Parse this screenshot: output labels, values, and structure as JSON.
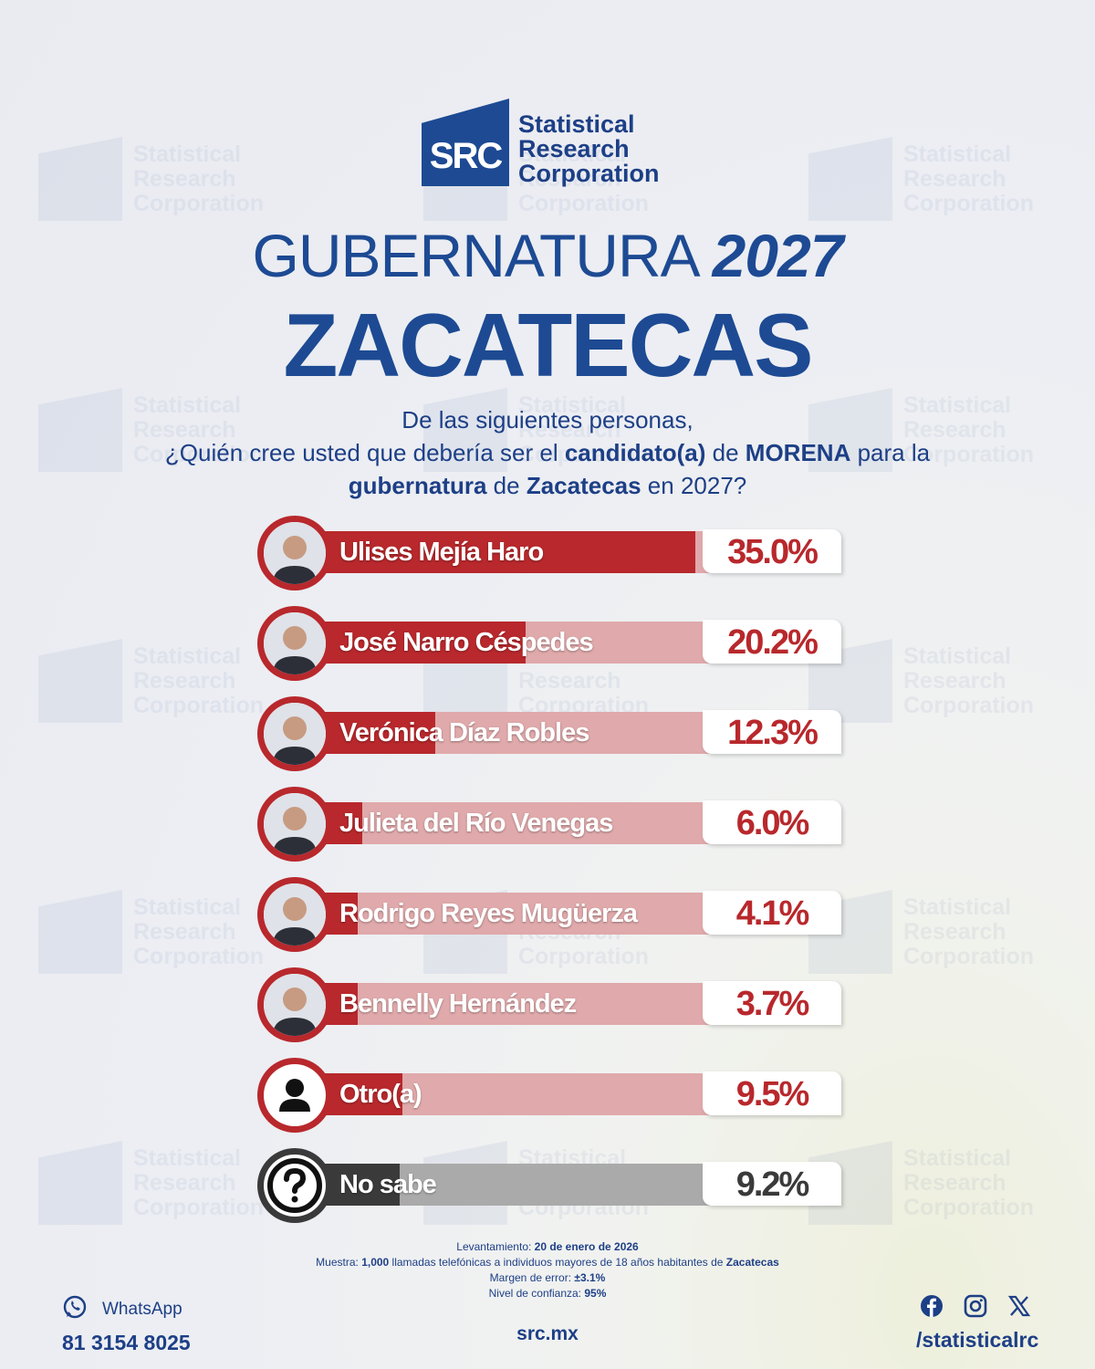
{
  "brand": {
    "logo_mark": "SRC",
    "logo_words": [
      "Statistical",
      "Research",
      "Corporation"
    ]
  },
  "header": {
    "title_light": "GUBERNATURA",
    "title_year": "2027",
    "state": "ZACATECAS"
  },
  "question": {
    "line1": "De las siguientes personas,",
    "line2_a": "¿Quién cree usted que debería ser el ",
    "line2_b": "candidato(a)",
    "line2_c": " de ",
    "line2_d": "MORENA",
    "line2_e": " para la",
    "line3_a": "gubernatura",
    "line3_b": " de ",
    "line3_c": "Zacatecas",
    "line3_d": " en 2027?"
  },
  "chart_data": {
    "type": "bar",
    "categories": [
      "Ulises Mejía Haro",
      "José Narro Céspedes",
      "Verónica Díaz Robles",
      "Julieta del Río Venegas",
      "Rodrigo Reyes Mugüerza",
      "Bennelly Hernández",
      "Otro(a)",
      "No sabe"
    ],
    "values": [
      35.0,
      20.2,
      12.3,
      6.0,
      4.1,
      3.7,
      9.5,
      9.2
    ],
    "labels": [
      "35.0%",
      "20.2%",
      "12.3%",
      "6.0%",
      "4.1%",
      "3.7%",
      "9.5%",
      "9.2%"
    ],
    "bar_colors": [
      "#b8282c",
      "#b8282c",
      "#b8282c",
      "#b8282c",
      "#b8282c",
      "#b8282c",
      "#b8282c",
      "#3a3a3a"
    ],
    "icons": [
      "candidate-photo",
      "candidate-photo",
      "candidate-photo",
      "candidate-photo",
      "candidate-photo",
      "candidate-photo",
      "person-icon",
      "question-icon"
    ]
  },
  "methodology": {
    "l1_label": "Levantamiento: ",
    "l1_value": "20 de enero de 2026",
    "l2_label": "Muestra: ",
    "l2_a": "1,000",
    "l2_b": " llamadas telefónicas a individuos mayores de 18 años habitantes de ",
    "l2_c": "Zacatecas",
    "l3_label": "Margen de error: ",
    "l3_value": "±3.1%",
    "l4_label": "Nivel de confianza: ",
    "l4_value": "95%"
  },
  "footer": {
    "whatsapp_label": "WhatsApp",
    "phone": "81 3154 8025",
    "website": "src.mx",
    "social_handle": "/statisticalrc"
  }
}
